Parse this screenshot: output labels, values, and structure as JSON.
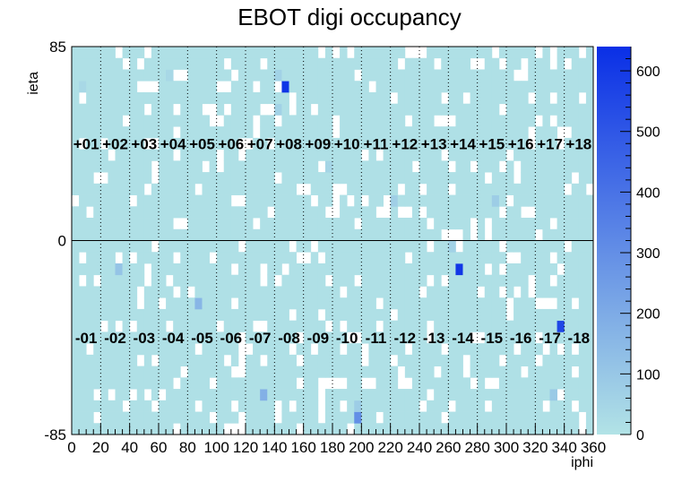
{
  "chart_data": {
    "type": "heatmap",
    "title": "EBOT digi occupancy",
    "xlabel": "iphi",
    "ylabel": "ieta",
    "xlim": [
      0,
      360
    ],
    "ylim": [
      -85,
      85
    ],
    "x_ticks": [
      0,
      20,
      40,
      60,
      80,
      100,
      120,
      140,
      160,
      180,
      200,
      220,
      240,
      260,
      280,
      300,
      320,
      340,
      360
    ],
    "y_ticks": [
      -85,
      0,
      85
    ],
    "colorbar": {
      "min": 0,
      "max": 640,
      "ticks": [
        0,
        100,
        200,
        300,
        400,
        500,
        600
      ],
      "low_color": "#b2e3e6",
      "high_color": "#0a2fe6"
    },
    "supermodule_labels_top": [
      "+01",
      "+02",
      "+03",
      "+04",
      "+05",
      "+06",
      "+07",
      "+08",
      "+09",
      "+10",
      "+11",
      "+12",
      "+13",
      "+14",
      "+15",
      "+16",
      "+17",
      "+18"
    ],
    "supermodule_labels_bottom": [
      "-01",
      "-02",
      "-03",
      "-04",
      "-05",
      "-06",
      "-07",
      "-08",
      "-09",
      "-10",
      "-11",
      "-12",
      "-13",
      "-14",
      "-15",
      "-16",
      "-17",
      "-18"
    ],
    "bin_size": {
      "iphi": 5,
      "ieta": 5
    },
    "baseline_value": 10,
    "empty_fraction_estimate": 0.12,
    "hot_cells": [
      {
        "iphi": 147.5,
        "ieta": 67.5,
        "value": 620
      },
      {
        "iphi": 142.5,
        "ieta": 72.5,
        "value": 60
      },
      {
        "iphi": 142.5,
        "ieta": 57.5,
        "value": 60
      },
      {
        "iphi": 267.5,
        "ieta": -12.5,
        "value": 610
      },
      {
        "iphi": 337.5,
        "ieta": -37.5,
        "value": 560
      },
      {
        "iphi": 197.5,
        "ieta": -77.5,
        "value": 300
      },
      {
        "iphi": 197.5,
        "ieta": -72.5,
        "value": 80
      },
      {
        "iphi": 132.5,
        "ieta": -67.5,
        "value": 180
      },
      {
        "iphi": 87.5,
        "ieta": -27.5,
        "value": 160
      },
      {
        "iphi": 32.5,
        "ieta": -12.5,
        "value": 110
      },
      {
        "iphi": 292.5,
        "ieta": 17.5,
        "value": 80
      },
      {
        "iphi": 222.5,
        "ieta": 17.5,
        "value": 70
      },
      {
        "iphi": 332.5,
        "ieta": -67.5,
        "value": 90
      },
      {
        "iphi": 262.5,
        "ieta": -2.5,
        "value": 60
      },
      {
        "iphi": 7.5,
        "ieta": 67.5,
        "value": 40
      },
      {
        "iphi": 67.5,
        "ieta": 72.5,
        "value": 40
      },
      {
        "iphi": 177.5,
        "ieta": 32.5,
        "value": 50
      }
    ]
  }
}
